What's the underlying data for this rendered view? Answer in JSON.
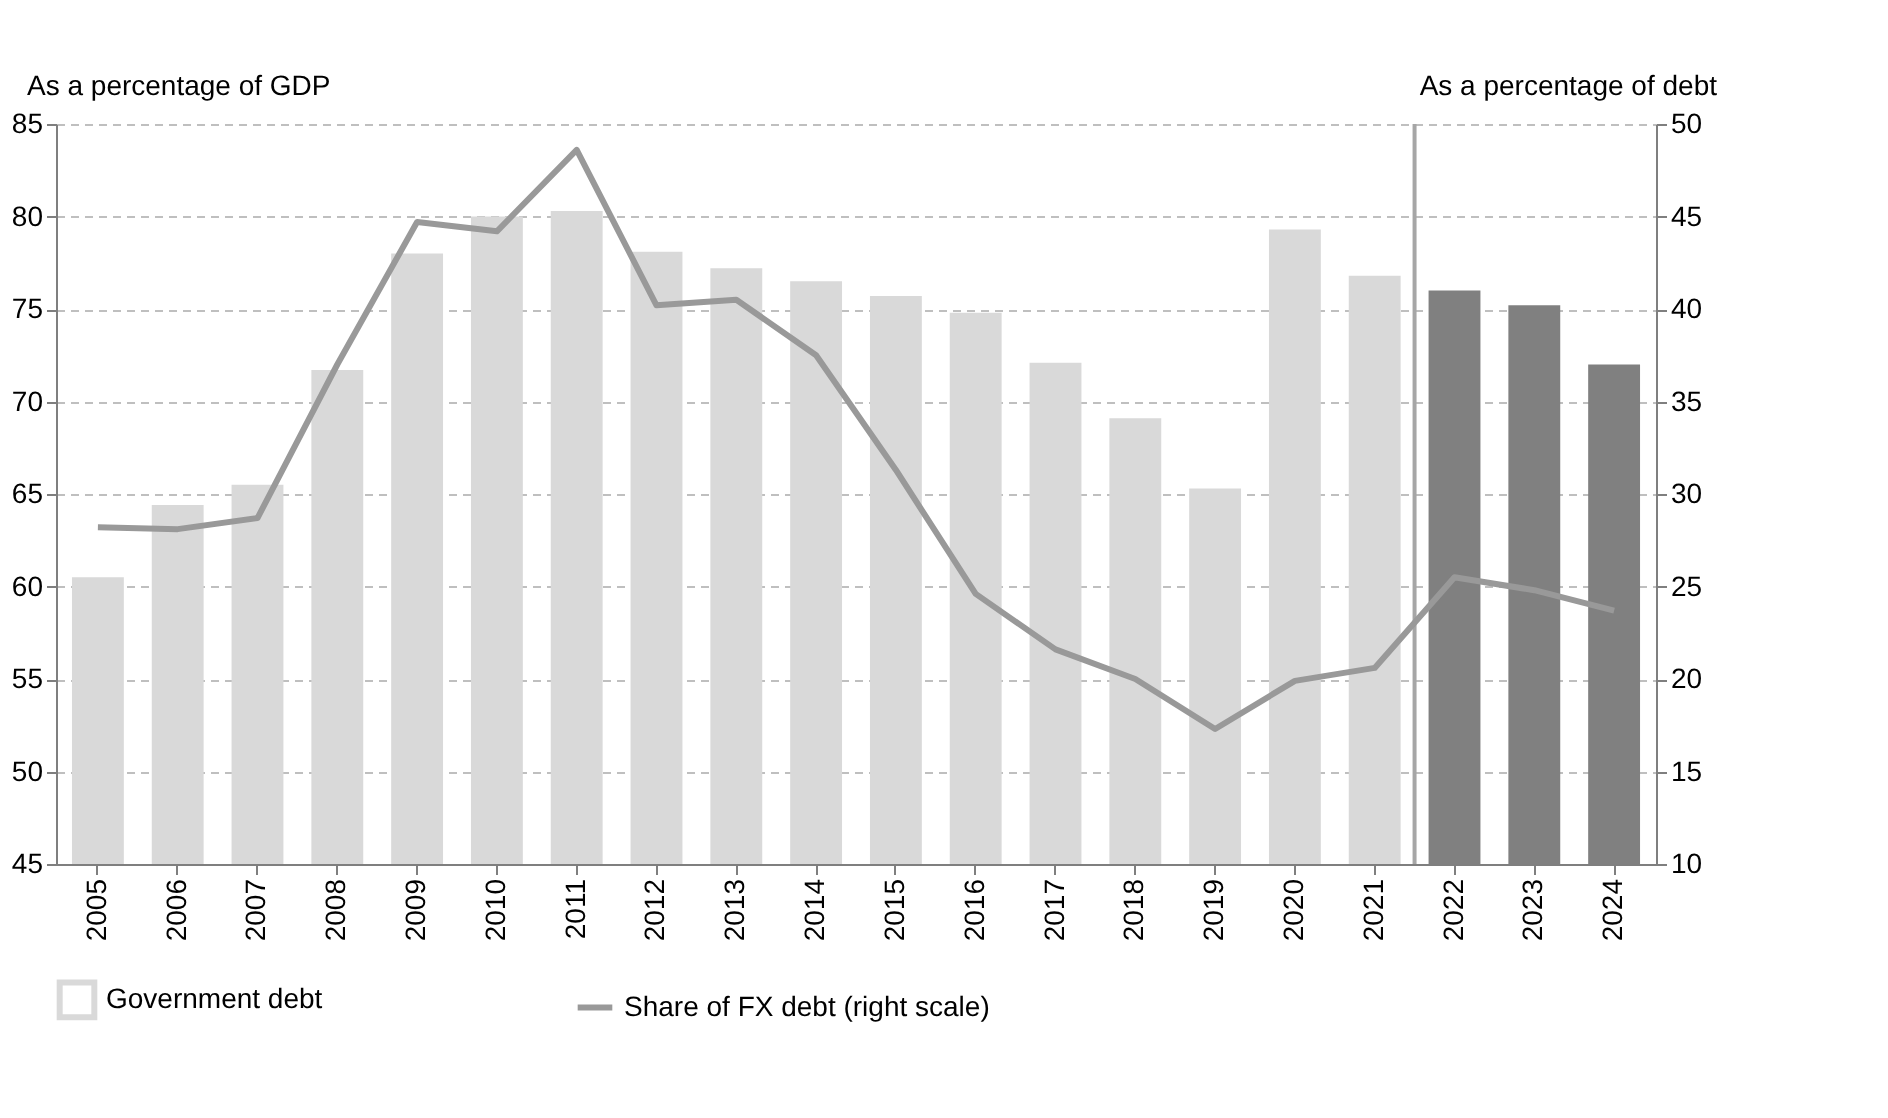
{
  "chart_data": {
    "type": "bar",
    "ylabel": "As a percentage of GDP",
    "y2label": "As a percentage of debt",
    "categories": [
      "2005",
      "2006",
      "2007",
      "2008",
      "2009",
      "2010",
      "2011",
      "2012",
      "2013",
      "2014",
      "2015",
      "2016",
      "2017",
      "2018",
      "2019",
      "2020",
      "2021",
      "2022",
      "2023",
      "2024"
    ],
    "series": [
      {
        "name": "Government debt",
        "color": "#d9d9d9",
        "colors": [
          "#d9d9d9",
          "#d9d9d9",
          "#d9d9d9",
          "#d9d9d9",
          "#d9d9d9",
          "#d9d9d9",
          "#d9d9d9",
          "#d9d9d9",
          "#d9d9d9",
          "#d9d9d9",
          "#d9d9d9",
          "#d9d9d9",
          "#d9d9d9",
          "#d9d9d9",
          "#d9d9d9",
          "#d9d9d9",
          "#d9d9d9",
          "#808080",
          "#808080",
          "#808080"
        ],
        "values": [
          60.5,
          64.4,
          65.5,
          71.7,
          78,
          80,
          80.3,
          78.1,
          77.2,
          76.5,
          75.7,
          74.8,
          72.1,
          69.1,
          65.3,
          79.3,
          76.8,
          76,
          75.2,
          72
        ]
      },
      {
        "name": "Share of FX debt (right scale)",
        "type": "line",
        "axis": "y2",
        "color": "#999999",
        "values": [
          28.2,
          28.1,
          28.7,
          37,
          44.7,
          44.2,
          48.6,
          40.2,
          40.5,
          37.5,
          31.3,
          24.6,
          21.6,
          20,
          17.3,
          19.9,
          20.6,
          25.5,
          24.8,
          23.7
        ]
      }
    ],
    "ylim": [
      45,
      85
    ],
    "yticks": [
      45,
      50,
      55,
      60,
      65,
      70,
      75,
      80,
      85
    ],
    "y2lim": [
      10,
      50
    ],
    "y2ticks": [
      10,
      15,
      20,
      25,
      30,
      35,
      40,
      45,
      50
    ],
    "ref_lines": [
      {
        "axis": "x",
        "value": "2022",
        "color": "#a6a6a6"
      }
    ],
    "grid": "y",
    "legend": "bottom",
    "line_style": "solid",
    "marker": "none"
  }
}
